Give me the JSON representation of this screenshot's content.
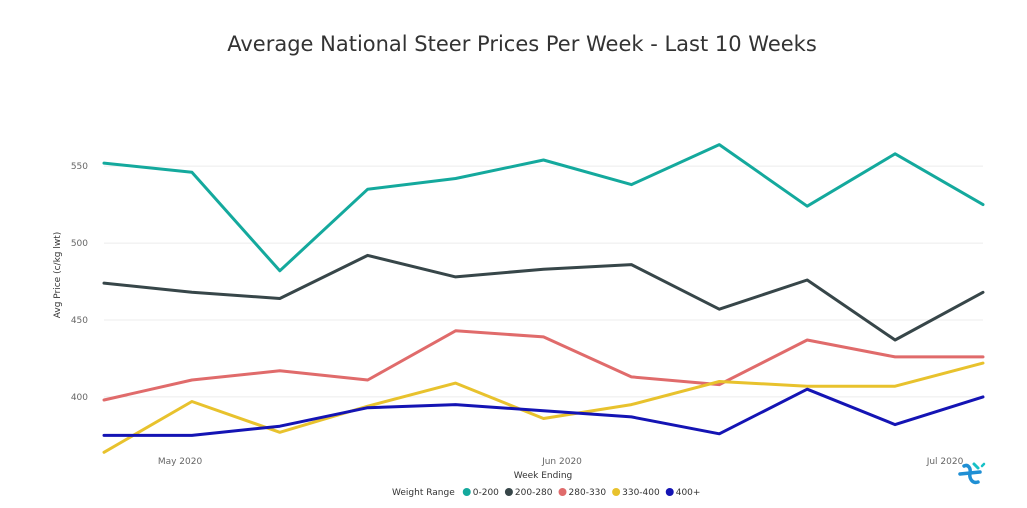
{
  "chart_data": {
    "type": "line",
    "title": "Average National Steer Prices Per Week - Last 10 Weeks",
    "xlabel": "Week Ending",
    "ylabel": "Avg Price (c/kg lwt)",
    "x_tick_labels": [
      "May 2020",
      "Jun 2020",
      "Jul 2020"
    ],
    "y_ticks": [
      400,
      450,
      500,
      550
    ],
    "ylim": [
      359,
      580
    ],
    "grid": true,
    "legend_title": "Weight Range",
    "legend_position": "bottom",
    "series": [
      {
        "name": "0-200",
        "color": "#14a99d",
        "values": [
          552,
          546,
          482,
          535,
          542,
          554,
          538,
          564,
          524,
          558,
          525
        ]
      },
      {
        "name": "200-280",
        "color": "#374649",
        "values": [
          474,
          468,
          464,
          492,
          478,
          483,
          486,
          457,
          476,
          437,
          468
        ]
      },
      {
        "name": "280-330",
        "color": "#e06b6b",
        "values": [
          398,
          411,
          417,
          411,
          443,
          439,
          413,
          408,
          437,
          426,
          426
        ]
      },
      {
        "name": "330-400",
        "color": "#e8c22d",
        "values": [
          364,
          397,
          377,
          394,
          409,
          386,
          395,
          410,
          407,
          407,
          422
        ]
      },
      {
        "name": "400+",
        "color": "#1414b4",
        "values": [
          375,
          375,
          381,
          393,
          395,
          391,
          387,
          376,
          405,
          382,
          400
        ]
      }
    ]
  }
}
